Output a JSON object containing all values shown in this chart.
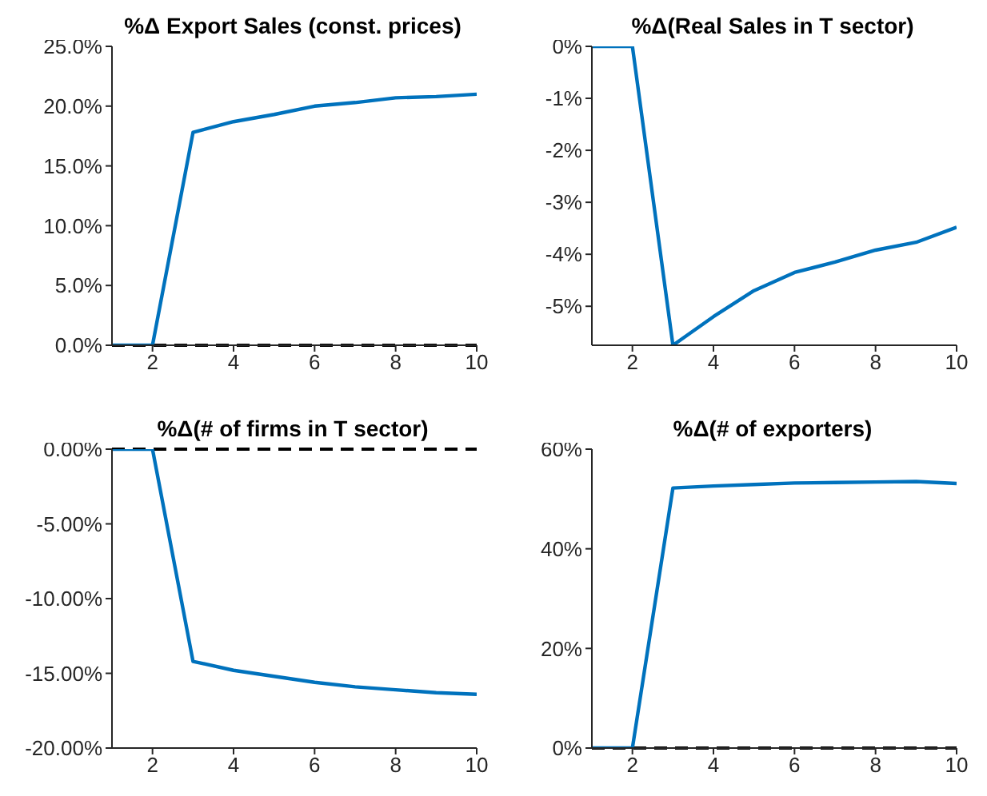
{
  "chart_data": [
    {
      "type": "line",
      "title": "%Δ Export Sales (const. prices)",
      "x": [
        1,
        2,
        3,
        4,
        5,
        6,
        7,
        8,
        9,
        10
      ],
      "series": [
        {
          "color": "#0072bd",
          "values": [
            0,
            0,
            17.8,
            18.7,
            19.3,
            20.0,
            20.3,
            20.7,
            20.8,
            21.0
          ]
        }
      ],
      "xlim": [
        1,
        10
      ],
      "xticks": [
        2,
        4,
        6,
        8,
        10
      ],
      "ylim": [
        0,
        25
      ],
      "yticks": [
        {
          "value": 0,
          "label": "0.0%"
        },
        {
          "value": 5,
          "label": "5.0%"
        },
        {
          "value": 10,
          "label": "10.0%"
        },
        {
          "value": 15,
          "label": "15.0%"
        },
        {
          "value": 20,
          "label": "20.0%"
        },
        {
          "value": 25,
          "label": "25.0%"
        }
      ],
      "ref_lines": [
        {
          "axis": "y",
          "value": 0,
          "color": "#000000",
          "line_style": "dashed"
        }
      ],
      "grid": false,
      "legend": false,
      "marker": "none",
      "line_style": "solid"
    },
    {
      "type": "line",
      "title": "%Δ(Real Sales in T sector)",
      "x": [
        1,
        2,
        3,
        4,
        5,
        6,
        7,
        8,
        9,
        10
      ],
      "series": [
        {
          "color": "#0072bd",
          "values": [
            0,
            0,
            -5.75,
            -5.2,
            -4.7,
            -4.35,
            -4.15,
            -3.92,
            -3.77,
            -3.48
          ]
        }
      ],
      "xlim": [
        1,
        10
      ],
      "xticks": [
        2,
        4,
        6,
        8,
        10
      ],
      "ylim": [
        -5.75,
        0
      ],
      "yticks": [
        {
          "value": -5,
          "label": "-5%"
        },
        {
          "value": -4,
          "label": "-4%"
        },
        {
          "value": -3,
          "label": "-3%"
        },
        {
          "value": -2,
          "label": "-2%"
        },
        {
          "value": -1,
          "label": "-1%"
        },
        {
          "value": 0,
          "label": "0%"
        }
      ],
      "grid": false,
      "legend": false,
      "marker": "none",
      "line_style": "solid"
    },
    {
      "type": "line",
      "title": "%Δ(# of firms in T sector)",
      "x": [
        1,
        2,
        3,
        4,
        5,
        6,
        7,
        8,
        9,
        10
      ],
      "series": [
        {
          "color": "#0072bd",
          "values": [
            0,
            0,
            -14.2,
            -14.8,
            -15.2,
            -15.6,
            -15.9,
            -16.1,
            -16.3,
            -16.4
          ]
        }
      ],
      "xlim": [
        1,
        10
      ],
      "xticks": [
        2,
        4,
        6,
        8,
        10
      ],
      "ylim": [
        -20,
        0
      ],
      "yticks": [
        {
          "value": -20,
          "label": "-20.00%"
        },
        {
          "value": -15,
          "label": "-15.00%"
        },
        {
          "value": -10,
          "label": "-10.00%"
        },
        {
          "value": -5,
          "label": "-5.00%"
        },
        {
          "value": 0,
          "label": "0.00%"
        }
      ],
      "ref_lines": [
        {
          "axis": "y",
          "value": 0,
          "color": "#000000",
          "line_style": "dashed"
        }
      ],
      "grid": false,
      "legend": false,
      "marker": "none",
      "line_style": "solid"
    },
    {
      "type": "line",
      "title": "%Δ(# of exporters)",
      "x": [
        1,
        2,
        3,
        4,
        5,
        6,
        7,
        8,
        9,
        10
      ],
      "series": [
        {
          "color": "#0072bd",
          "values": [
            0,
            0,
            52.2,
            52.6,
            52.9,
            53.2,
            53.3,
            53.4,
            53.5,
            53.1
          ]
        }
      ],
      "xlim": [
        1,
        10
      ],
      "xticks": [
        2,
        4,
        6,
        8,
        10
      ],
      "ylim": [
        0,
        60
      ],
      "yticks": [
        {
          "value": 0,
          "label": "0%"
        },
        {
          "value": 20,
          "label": "20%"
        },
        {
          "value": 40,
          "label": "40%"
        },
        {
          "value": 60,
          "label": "60%"
        }
      ],
      "ref_lines": [
        {
          "axis": "y",
          "value": 0,
          "color": "#000000",
          "line_style": "dashed"
        }
      ],
      "grid": false,
      "legend": false,
      "marker": "none",
      "line_style": "solid"
    }
  ]
}
